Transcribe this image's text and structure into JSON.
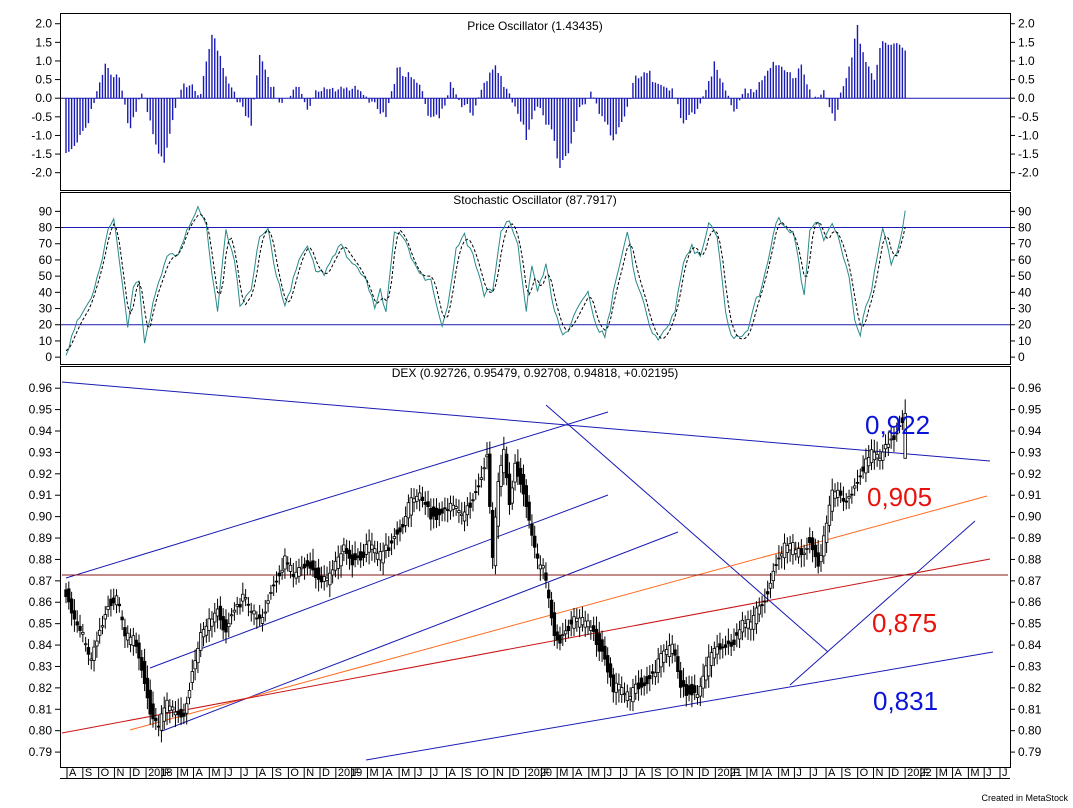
{
  "footer": {
    "credit": "Created in MetaStock"
  },
  "chart_data": [
    {
      "type": "bar",
      "title": "Price Oscillator (1.43435)",
      "yticks": [
        "2.0",
        "1.5",
        "1.0",
        "0.5",
        "0.0",
        "-0.5",
        "-1.0",
        "-1.5",
        "-2.0"
      ],
      "ylim": [
        -2.25,
        2.1
      ],
      "n_bars": 300,
      "anchors": [
        [
          0,
          -1.5
        ],
        [
          3,
          -1.2
        ],
        [
          8,
          -0.6
        ],
        [
          14,
          0.8
        ],
        [
          19,
          0.6
        ],
        [
          23,
          -0.9
        ],
        [
          27,
          0.1
        ],
        [
          33,
          -1.4
        ],
        [
          35,
          -1.6
        ],
        [
          39,
          -0.3
        ],
        [
          42,
          0.3
        ],
        [
          48,
          0.2
        ],
        [
          52,
          1.8
        ],
        [
          55,
          1.0
        ],
        [
          58,
          0.3
        ],
        [
          62,
          -0.1
        ],
        [
          66,
          -0.6
        ],
        [
          69,
          1.1
        ],
        [
          73,
          0.3
        ],
        [
          77,
          -0.1
        ],
        [
          82,
          0.4
        ],
        [
          86,
          -0.4
        ],
        [
          90,
          0.3
        ],
        [
          95,
          0.3
        ],
        [
          100,
          0.2
        ],
        [
          105,
          0.2
        ],
        [
          110,
          -0.1
        ],
        [
          114,
          -0.6
        ],
        [
          118,
          0.7
        ],
        [
          122,
          0.7
        ],
        [
          126,
          0.4
        ],
        [
          129,
          -0.5
        ],
        [
          133,
          -0.6
        ],
        [
          137,
          0.5
        ],
        [
          141,
          -0.1
        ],
        [
          145,
          -0.5
        ],
        [
          149,
          0.4
        ],
        [
          153,
          1.0
        ],
        [
          156,
          0.4
        ],
        [
          160,
          -0.3
        ],
        [
          164,
          -1.0
        ],
        [
          168,
          -0.1
        ],
        [
          173,
          -0.9
        ],
        [
          176,
          -2.0
        ],
        [
          179,
          -1.4
        ],
        [
          183,
          -0.2
        ],
        [
          187,
          0.1
        ],
        [
          191,
          -0.6
        ],
        [
          195,
          -1.1
        ],
        [
          199,
          -0.4
        ],
        [
          203,
          0.5
        ],
        [
          208,
          0.6
        ],
        [
          212,
          0.5
        ],
        [
          216,
          0.2
        ],
        [
          220,
          -0.8
        ],
        [
          224,
          -0.4
        ],
        [
          228,
          0.3
        ],
        [
          231,
          0.9
        ],
        [
          234,
          0.3
        ],
        [
          238,
          -0.4
        ],
        [
          242,
          0.3
        ],
        [
          246,
          0.2
        ],
        [
          250,
          0.7
        ],
        [
          253,
          1.0
        ],
        [
          256,
          0.9
        ],
        [
          259,
          0.6
        ],
        [
          262,
          0.8
        ],
        [
          266,
          -0.1
        ],
        [
          270,
          0.3
        ],
        [
          274,
          -0.5
        ],
        [
          277,
          0.3
        ],
        [
          280,
          1.0
        ],
        [
          282,
          1.9
        ],
        [
          285,
          1.0
        ],
        [
          288,
          0.6
        ],
        [
          290,
          1.4
        ],
        [
          299,
          1.4
        ]
      ]
    },
    {
      "type": "line",
      "title": "Stochastic Oscillator (87.7917)",
      "yticks": [
        "90",
        "80",
        "70",
        "60",
        "50",
        "40",
        "30",
        "20",
        "10",
        "0"
      ],
      "ylim": [
        -3,
        97
      ],
      "levels": [
        80,
        20
      ],
      "n_points": 300,
      "anchors": [
        [
          0,
          4
        ],
        [
          4,
          20
        ],
        [
          8,
          32
        ],
        [
          12,
          55
        ],
        [
          15,
          80
        ],
        [
          17,
          84
        ],
        [
          20,
          45
        ],
        [
          22,
          18
        ],
        [
          24,
          45
        ],
        [
          26,
          48
        ],
        [
          28,
          10
        ],
        [
          31,
          35
        ],
        [
          34,
          50
        ],
        [
          36,
          60
        ],
        [
          40,
          65
        ],
        [
          43,
          80
        ],
        [
          47,
          90
        ],
        [
          50,
          80
        ],
        [
          52,
          50
        ],
        [
          54,
          30
        ],
        [
          57,
          80
        ],
        [
          60,
          60
        ],
        [
          62,
          30
        ],
        [
          66,
          40
        ],
        [
          69,
          75
        ],
        [
          72,
          80
        ],
        [
          75,
          50
        ],
        [
          78,
          30
        ],
        [
          80,
          40
        ],
        [
          83,
          60
        ],
        [
          86,
          70
        ],
        [
          89,
          55
        ],
        [
          92,
          50
        ],
        [
          95,
          60
        ],
        [
          98,
          70
        ],
        [
          101,
          62
        ],
        [
          104,
          55
        ],
        [
          107,
          45
        ],
        [
          110,
          30
        ],
        [
          112,
          40
        ],
        [
          114,
          30
        ],
        [
          117,
          80
        ],
        [
          120,
          75
        ],
        [
          123,
          60
        ],
        [
          126,
          50
        ],
        [
          130,
          50
        ],
        [
          134,
          20
        ],
        [
          136,
          30
        ],
        [
          139,
          65
        ],
        [
          142,
          75
        ],
        [
          145,
          65
        ],
        [
          149,
          40
        ],
        [
          152,
          40
        ],
        [
          155,
          75
        ],
        [
          158,
          85
        ],
        [
          161,
          70
        ],
        [
          164,
          30
        ],
        [
          166,
          55
        ],
        [
          168,
          40
        ],
        [
          171,
          55
        ],
        [
          174,
          30
        ],
        [
          177,
          15
        ],
        [
          180,
          20
        ],
        [
          183,
          30
        ],
        [
          186,
          40
        ],
        [
          189,
          20
        ],
        [
          192,
          15
        ],
        [
          195,
          40
        ],
        [
          198,
          60
        ],
        [
          200,
          75
        ],
        [
          203,
          50
        ],
        [
          205,
          40
        ],
        [
          208,
          20
        ],
        [
          211,
          10
        ],
        [
          214,
          15
        ],
        [
          217,
          30
        ],
        [
          220,
          60
        ],
        [
          223,
          70
        ],
        [
          226,
          60
        ],
        [
          229,
          80
        ],
        [
          232,
          75
        ],
        [
          235,
          30
        ],
        [
          237,
          15
        ],
        [
          240,
          10
        ],
        [
          243,
          15
        ],
        [
          245,
          30
        ],
        [
          247,
          40
        ],
        [
          250,
          60
        ],
        [
          253,
          85
        ],
        [
          256,
          80
        ],
        [
          259,
          75
        ],
        [
          261,
          60
        ],
        [
          263,
          40
        ],
        [
          265,
          80
        ],
        [
          268,
          85
        ],
        [
          270,
          70
        ],
        [
          273,
          80
        ],
        [
          276,
          70
        ],
        [
          279,
          50
        ],
        [
          281,
          25
        ],
        [
          283,
          15
        ],
        [
          285,
          30
        ],
        [
          287,
          40
        ],
        [
          289,
          60
        ],
        [
          291,
          80
        ],
        [
          294,
          60
        ],
        [
          296,
          65
        ],
        [
          299,
          88
        ]
      ]
    },
    {
      "type": "candlestick",
      "title": "DEX (0.92726, 0.95479, 0.92708, 0.94818, +0.02195)",
      "yticks": [
        "0.96",
        "0.95",
        "0.94",
        "0.93",
        "0.92",
        "0.91",
        "0.90",
        "0.89",
        "0.88",
        "0.87",
        "0.86",
        "0.85",
        "0.84",
        "0.83",
        "0.82",
        "0.81",
        "0.80",
        "0.79"
      ],
      "ylim": [
        0.7835,
        0.9685
      ],
      "n_candles": 300,
      "last": {
        "open": 0.92726,
        "high": 0.95479,
        "low": 0.92708,
        "close": 0.94818
      },
      "anchors": [
        [
          0,
          0.865
        ],
        [
          3,
          0.852
        ],
        [
          6,
          0.843
        ],
        [
          9,
          0.832
        ],
        [
          12,
          0.848
        ],
        [
          15,
          0.86
        ],
        [
          18,
          0.862
        ],
        [
          21,
          0.843
        ],
        [
          24,
          0.842
        ],
        [
          27,
          0.83
        ],
        [
          30,
          0.81
        ],
        [
          33,
          0.802
        ],
        [
          36,
          0.812
        ],
        [
          39,
          0.808
        ],
        [
          42,
          0.808
        ],
        [
          45,
          0.828
        ],
        [
          48,
          0.845
        ],
        [
          51,
          0.85
        ],
        [
          54,
          0.856
        ],
        [
          57,
          0.847
        ],
        [
          60,
          0.858
        ],
        [
          63,
          0.862
        ],
        [
          66,
          0.855
        ],
        [
          69,
          0.85
        ],
        [
          72,
          0.862
        ],
        [
          75,
          0.872
        ],
        [
          78,
          0.88
        ],
        [
          81,
          0.872
        ],
        [
          84,
          0.876
        ],
        [
          87,
          0.878
        ],
        [
          90,
          0.871
        ],
        [
          93,
          0.871
        ],
        [
          96,
          0.877
        ],
        [
          99,
          0.885
        ],
        [
          102,
          0.88
        ],
        [
          105,
          0.882
        ],
        [
          108,
          0.887
        ],
        [
          111,
          0.88
        ],
        [
          114,
          0.884
        ],
        [
          117,
          0.892
        ],
        [
          120,
          0.897
        ],
        [
          123,
          0.907
        ],
        [
          126,
          0.91
        ],
        [
          129,
          0.902
        ],
        [
          132,
          0.901
        ],
        [
          135,
          0.904
        ],
        [
          138,
          0.904
        ],
        [
          141,
          0.9
        ],
        [
          144,
          0.906
        ],
        [
          147,
          0.915
        ],
        [
          150,
          0.93
        ],
        [
          152,
          0.88
        ],
        [
          154,
          0.915
        ],
        [
          156,
          0.93
        ],
        [
          158,
          0.905
        ],
        [
          160,
          0.925
        ],
        [
          162,
          0.918
        ],
        [
          164,
          0.905
        ],
        [
          166,
          0.892
        ],
        [
          168,
          0.878
        ],
        [
          170,
          0.875
        ],
        [
          172,
          0.86
        ],
        [
          174,
          0.845
        ],
        [
          176,
          0.842
        ],
        [
          178,
          0.848
        ],
        [
          181,
          0.852
        ],
        [
          184,
          0.85
        ],
        [
          187,
          0.848
        ],
        [
          190,
          0.84
        ],
        [
          192,
          0.835
        ],
        [
          195,
          0.82
        ],
        [
          198,
          0.818
        ],
        [
          201,
          0.815
        ],
        [
          204,
          0.822
        ],
        [
          207,
          0.823
        ],
        [
          210,
          0.83
        ],
        [
          213,
          0.836
        ],
        [
          216,
          0.84
        ],
        [
          218,
          0.825
        ],
        [
          221,
          0.819
        ],
        [
          224,
          0.818
        ],
        [
          226,
          0.82
        ],
        [
          229,
          0.832
        ],
        [
          232,
          0.838
        ],
        [
          235,
          0.84
        ],
        [
          238,
          0.843
        ],
        [
          241,
          0.85
        ],
        [
          244,
          0.85
        ],
        [
          247,
          0.858
        ],
        [
          250,
          0.865
        ],
        [
          253,
          0.88
        ],
        [
          256,
          0.885
        ],
        [
          259,
          0.885
        ],
        [
          262,
          0.882
        ],
        [
          265,
          0.89
        ],
        [
          268,
          0.878
        ],
        [
          270,
          0.89
        ],
        [
          273,
          0.91
        ],
        [
          275,
          0.912
        ],
        [
          277,
          0.905
        ],
        [
          279,
          0.91
        ],
        [
          282,
          0.918
        ],
        [
          285,
          0.925
        ],
        [
          288,
          0.93
        ],
        [
          290,
          0.927
        ],
        [
          299,
          0.948
        ]
      ],
      "level_labels": [
        {
          "text": "0,922",
          "color": "#0a14d8"
        },
        {
          "text": "0,905",
          "color": "#e8120c"
        },
        {
          "text": "0,875",
          "color": "#e8120c"
        },
        {
          "text": "0,831",
          "color": "#0a14d8"
        }
      ],
      "x_tick_labels": [
        "A",
        "S",
        "O",
        "N",
        "D",
        "2018",
        "F",
        "M",
        "A",
        "M",
        "J",
        "J",
        "A",
        "S",
        "O",
        "N",
        "D",
        "2019",
        "F",
        "M",
        "A",
        "M",
        "J",
        "J",
        "A",
        "S",
        "O",
        "N",
        "D",
        "2020",
        "F",
        "M",
        "A",
        "M",
        "J",
        "J",
        "A",
        "S",
        "O",
        "N",
        "D",
        "2021",
        "F",
        "M",
        "A",
        "M",
        "J",
        "J",
        "A",
        "S",
        "O",
        "N",
        "D",
        "2022",
        "F",
        "M",
        "A",
        "M",
        "J",
        "J"
      ]
    }
  ]
}
